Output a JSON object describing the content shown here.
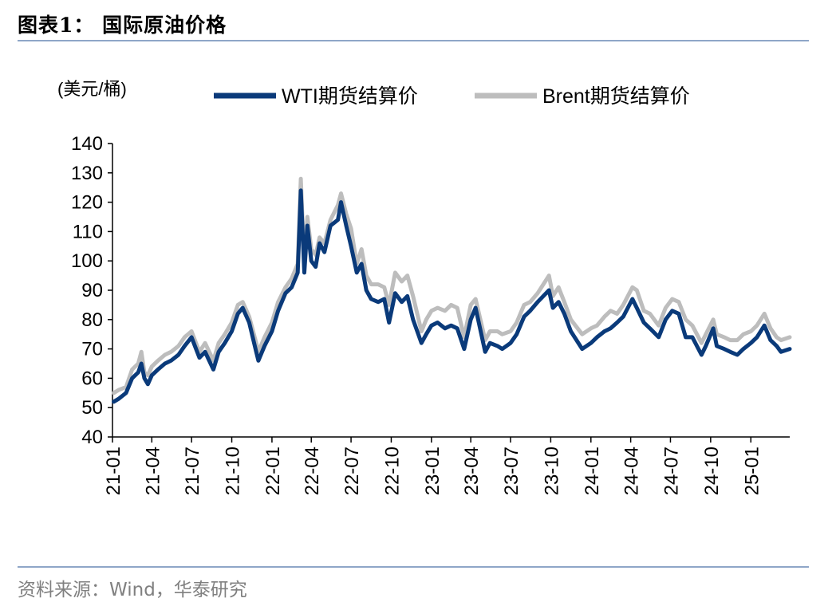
{
  "header": {
    "title": "图表1：  国际原油价格"
  },
  "footer": {
    "source": "资料来源：Wind，华泰研究"
  },
  "colors": {
    "wti": "#0A3A7A",
    "brent": "#BDBDBD",
    "rule": "#8FA6C8"
  },
  "chart_data": {
    "type": "line",
    "title": "",
    "ylabel": "(美元/桶)",
    "xlabel": "",
    "ylim": [
      40,
      140
    ],
    "yticks": [
      "40",
      "50",
      "60",
      "70",
      "80",
      "90",
      "100",
      "110",
      "120",
      "130",
      "140"
    ],
    "xticks": [
      "21-01",
      "21-04",
      "21-07",
      "21-10",
      "22-01",
      "22-04",
      "22-07",
      "22-10",
      "23-01",
      "23-04",
      "23-07",
      "23-10",
      "24-01",
      "24-04",
      "24-07",
      "24-10",
      "25-01"
    ],
    "xlim": [
      "2021-01-01",
      "2025-03-31"
    ],
    "grid": false,
    "legend": "top",
    "x": [
      "2021-01-04",
      "2021-01-15",
      "2021-02-01",
      "2021-02-15",
      "2021-03-01",
      "2021-03-08",
      "2021-03-15",
      "2021-03-23",
      "2021-04-01",
      "2021-04-15",
      "2021-05-01",
      "2021-05-15",
      "2021-06-01",
      "2021-06-15",
      "2021-07-01",
      "2021-07-06",
      "2021-07-19",
      "2021-08-01",
      "2021-08-20",
      "2021-09-01",
      "2021-09-15",
      "2021-10-01",
      "2021-10-15",
      "2021-10-26",
      "2021-11-10",
      "2021-11-26",
      "2021-12-01",
      "2021-12-15",
      "2022-01-01",
      "2022-01-15",
      "2022-02-01",
      "2022-02-15",
      "2022-03-01",
      "2022-03-08",
      "2022-03-16",
      "2022-03-23",
      "2022-04-01",
      "2022-04-11",
      "2022-04-20",
      "2022-05-01",
      "2022-05-15",
      "2022-06-01",
      "2022-06-08",
      "2022-06-20",
      "2022-07-01",
      "2022-07-14",
      "2022-07-25",
      "2022-08-05",
      "2022-08-16",
      "2022-09-01",
      "2022-09-15",
      "2022-09-26",
      "2022-10-10",
      "2022-10-25",
      "2022-11-07",
      "2022-11-20",
      "2022-12-09",
      "2022-12-20",
      "2023-01-01",
      "2023-01-15",
      "2023-02-01",
      "2023-02-15",
      "2023-03-01",
      "2023-03-17",
      "2023-04-01",
      "2023-04-12",
      "2023-05-04",
      "2023-05-15",
      "2023-06-01",
      "2023-06-12",
      "2023-07-01",
      "2023-07-15",
      "2023-08-01",
      "2023-08-15",
      "2023-09-01",
      "2023-09-27",
      "2023-10-06",
      "2023-10-19",
      "2023-11-01",
      "2023-11-16",
      "2023-12-12",
      "2024-01-01",
      "2024-01-15",
      "2024-02-01",
      "2024-02-15",
      "2024-03-01",
      "2024-03-15",
      "2024-04-05",
      "2024-04-15",
      "2024-05-01",
      "2024-05-15",
      "2024-06-04",
      "2024-06-20",
      "2024-07-05",
      "2024-07-20",
      "2024-08-05",
      "2024-08-20",
      "2024-09-10",
      "2024-09-20",
      "2024-10-07",
      "2024-10-15",
      "2024-11-01",
      "2024-11-15",
      "2024-12-01",
      "2024-12-15",
      "2025-01-01",
      "2025-01-15",
      "2025-02-01",
      "2025-02-15",
      "2025-03-01",
      "2025-03-11",
      "2025-03-31"
    ],
    "series": [
      {
        "name": "WTI期货结算价",
        "values": [
          52,
          53,
          55,
          60,
          62,
          65,
          60,
          58,
          61,
          63,
          65,
          66,
          68,
          71,
          74,
          72,
          67,
          69,
          63,
          69,
          72,
          76,
          82,
          84,
          79,
          69,
          66,
          71,
          76,
          83,
          89,
          91,
          96,
          124,
          96,
          112,
          100,
          98,
          106,
          103,
          112,
          114,
          120,
          112,
          105,
          96,
          99,
          90,
          87,
          86,
          87,
          79,
          89,
          86,
          88,
          80,
          72,
          75,
          78,
          79,
          77,
          78,
          77,
          70,
          80,
          84,
          69,
          72,
          71,
          70,
          72,
          75,
          81,
          83,
          86,
          90,
          84,
          86,
          82,
          76,
          70,
          72,
          74,
          76,
          77,
          79,
          81,
          87,
          84,
          79,
          77,
          74,
          80,
          83,
          82,
          74,
          74,
          68,
          71,
          77,
          71,
          70,
          69,
          68,
          70,
          72,
          74,
          78,
          73,
          71,
          69,
          70
        ]
      },
      {
        "name": "Brent期货结算价",
        "values": [
          55,
          56,
          57,
          63,
          65,
          69,
          62,
          61,
          64,
          66,
          68,
          69,
          71,
          74,
          76,
          74,
          69,
          72,
          66,
          72,
          75,
          79,
          85,
          86,
          81,
          72,
          69,
          74,
          79,
          86,
          91,
          94,
          99,
          128,
          99,
          115,
          104,
          102,
          108,
          106,
          114,
          119,
          123,
          116,
          111,
          99,
          104,
          95,
          92,
          92,
          91,
          85,
          96,
          93,
          95,
          88,
          76,
          80,
          83,
          84,
          83,
          85,
          84,
          74,
          85,
          87,
          73,
          76,
          76,
          75,
          76,
          79,
          85,
          86,
          89,
          95,
          88,
          91,
          86,
          80,
          75,
          77,
          78,
          81,
          83,
          82,
          85,
          91,
          90,
          83,
          82,
          78,
          84,
          87,
          86,
          80,
          78,
          72,
          75,
          80,
          75,
          74,
          73,
          73,
          75,
          76,
          78,
          82,
          77,
          74,
          73,
          74
        ]
      }
    ]
  }
}
